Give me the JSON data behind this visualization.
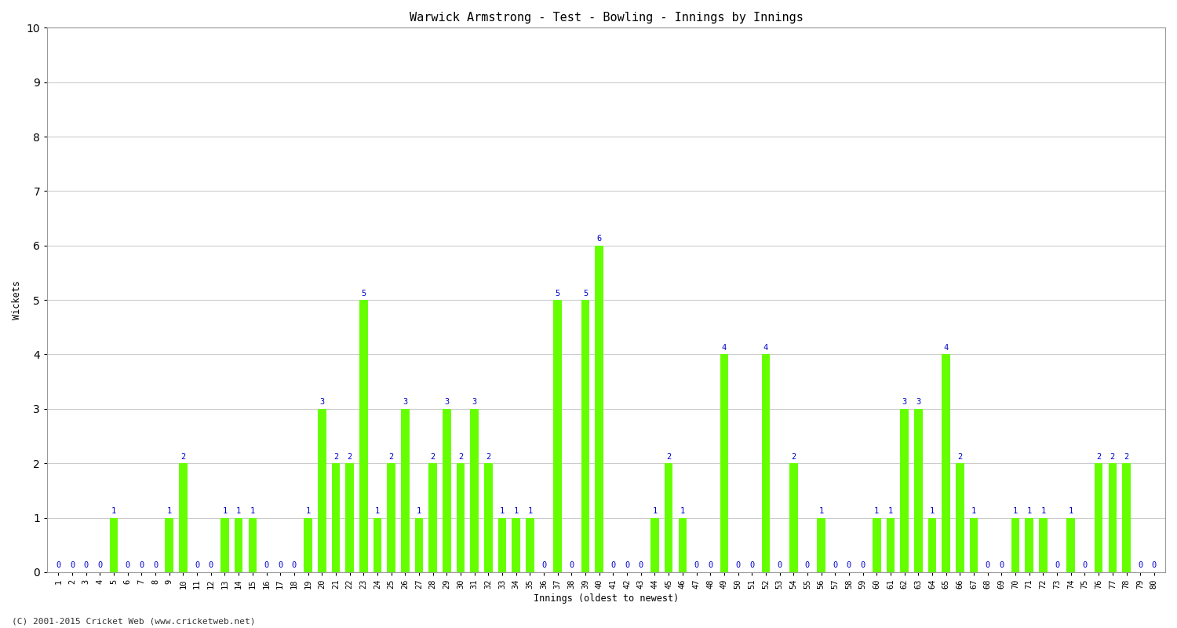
{
  "title": "Warwick Armstrong - Test - Bowling - Innings by Innings",
  "xlabel": "Innings (oldest to newest)",
  "ylabel": "Wickets",
  "ylim": [
    0,
    10
  ],
  "yticks": [
    0,
    1,
    2,
    3,
    4,
    5,
    6,
    7,
    8,
    9,
    10
  ],
  "bar_color": "#66ff00",
  "label_color": "#0000cc",
  "background_color": "#ffffff",
  "grid_color": "#cccccc",
  "footer": "(C) 2001-2015 Cricket Web (www.cricketweb.net)",
  "innings": [
    1,
    2,
    3,
    4,
    5,
    6,
    7,
    8,
    9,
    10,
    11,
    12,
    13,
    14,
    15,
    16,
    17,
    18,
    19,
    20,
    21,
    22,
    23,
    24,
    25,
    26,
    27,
    28,
    29,
    30,
    31,
    32,
    33,
    34,
    35,
    36,
    37,
    38,
    39,
    40,
    41,
    42,
    43,
    44,
    45,
    46,
    47,
    48,
    49,
    50,
    51,
    52,
    53,
    54,
    55,
    56,
    57,
    58,
    59,
    60,
    61,
    62,
    63,
    64,
    65,
    66,
    67,
    68,
    69,
    70,
    71,
    72,
    73,
    74,
    75,
    76,
    77,
    78,
    79,
    80
  ],
  "wickets": [
    0,
    0,
    0,
    0,
    1,
    0,
    0,
    0,
    1,
    2,
    0,
    0,
    1,
    1,
    1,
    0,
    0,
    0,
    1,
    3,
    2,
    2,
    5,
    1,
    2,
    3,
    1,
    2,
    3,
    2,
    3,
    2,
    1,
    1,
    1,
    0,
    5,
    0,
    5,
    6,
    0,
    0,
    0,
    1,
    2,
    1,
    0,
    0,
    4,
    0,
    0,
    4,
    0,
    2,
    0,
    1,
    0,
    0,
    0,
    1,
    1,
    3,
    3,
    1,
    4,
    2,
    1,
    0,
    0,
    1,
    1,
    1,
    0,
    1,
    0,
    2,
    2,
    2,
    0,
    0
  ]
}
